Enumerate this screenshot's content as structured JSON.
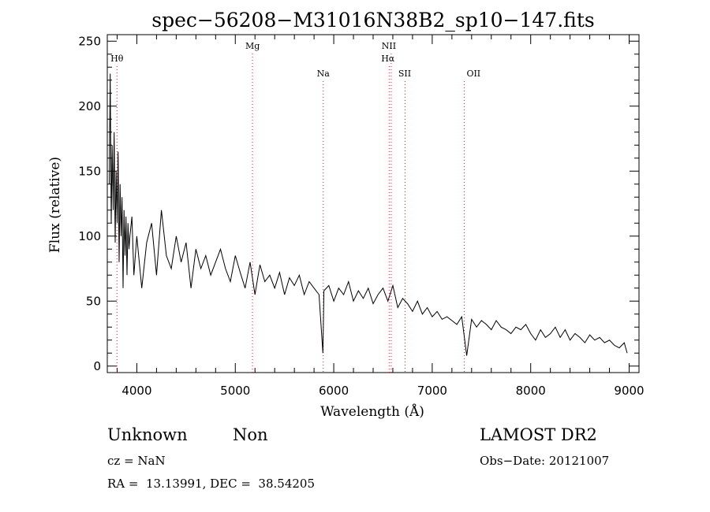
{
  "chart_data": {
    "type": "line",
    "title": "spec−56208−M31016N38B2_sp10−147.fits",
    "xlabel": "Wavelength (Å)",
    "ylabel": "Flux (relative)",
    "xlim": [
      3700,
      9100
    ],
    "ylim": [
      -5,
      255
    ],
    "x_ticks": [
      4000,
      5000,
      6000,
      7000,
      8000,
      9000
    ],
    "y_ticks": [
      0,
      50,
      100,
      150,
      200,
      250
    ],
    "grid": false,
    "line_color": "#000000",
    "marker_color": "#d02020",
    "spectrum": {
      "x": [
        3720,
        3730,
        3740,
        3750,
        3760,
        3770,
        3780,
        3790,
        3800,
        3810,
        3820,
        3830,
        3840,
        3850,
        3860,
        3870,
        3880,
        3890,
        3900,
        3910,
        3920,
        3930,
        3950,
        3970,
        4000,
        4050,
        4100,
        4150,
        4200,
        4250,
        4300,
        4350,
        4400,
        4450,
        4500,
        4550,
        4600,
        4650,
        4700,
        4750,
        4800,
        4850,
        4900,
        4950,
        5000,
        5050,
        5100,
        5150,
        5200,
        5250,
        5300,
        5350,
        5400,
        5450,
        5500,
        5550,
        5600,
        5650,
        5700,
        5750,
        5800,
        5850,
        5890,
        5900,
        5950,
        6000,
        6050,
        6100,
        6150,
        6200,
        6250,
        6300,
        6350,
        6400,
        6450,
        6500,
        6550,
        6600,
        6650,
        6700,
        6750,
        6800,
        6850,
        6900,
        6950,
        7000,
        7050,
        7100,
        7150,
        7200,
        7250,
        7300,
        7350,
        7400,
        7450,
        7500,
        7550,
        7600,
        7650,
        7700,
        7750,
        7800,
        7850,
        7900,
        7950,
        8000,
        8050,
        8100,
        8150,
        8200,
        8250,
        8300,
        8350,
        8400,
        8450,
        8500,
        8550,
        8600,
        8650,
        8700,
        8750,
        8800,
        8850,
        8900,
        8950,
        8980
      ],
      "y": [
        140,
        225,
        110,
        170,
        120,
        180,
        95,
        150,
        110,
        165,
        80,
        140,
        100,
        130,
        60,
        120,
        85,
        115,
        70,
        110,
        90,
        100,
        115,
        70,
        100,
        60,
        95,
        110,
        70,
        120,
        85,
        75,
        100,
        80,
        95,
        60,
        90,
        75,
        85,
        70,
        80,
        90,
        75,
        65,
        85,
        72,
        60,
        80,
        55,
        78,
        65,
        70,
        60,
        72,
        55,
        68,
        62,
        70,
        55,
        65,
        60,
        55,
        10,
        58,
        62,
        50,
        60,
        55,
        65,
        50,
        58,
        52,
        60,
        48,
        55,
        60,
        50,
        62,
        45,
        52,
        48,
        42,
        50,
        40,
        45,
        38,
        42,
        36,
        38,
        35,
        32,
        38,
        8,
        36,
        30,
        35,
        32,
        28,
        35,
        30,
        28,
        25,
        30,
        28,
        32,
        25,
        20,
        28,
        22,
        25,
        30,
        22,
        28,
        20,
        25,
        22,
        18,
        24,
        20,
        22,
        18,
        20,
        16,
        14,
        18,
        10
      ]
    },
    "lines": [
      {
        "label": "Hθ",
        "x": 3798
      },
      {
        "label": "Mg",
        "x": 5175
      },
      {
        "label": "Na",
        "x": 5893
      },
      {
        "label": "NII",
        "x": 6583
      },
      {
        "label": "Hα",
        "x": 6563
      },
      {
        "label": "SII",
        "x": 6724
      },
      {
        "label": "OII",
        "x": 7325
      }
    ]
  },
  "footer": {
    "object_class": "Unknown",
    "subclass": "Non",
    "survey": "LAMOST DR2",
    "cz": "cz = NaN",
    "obs_date": "Obs−Date: 20121007",
    "coords": "RA =  13.13991, DEC =  38.54205"
  }
}
